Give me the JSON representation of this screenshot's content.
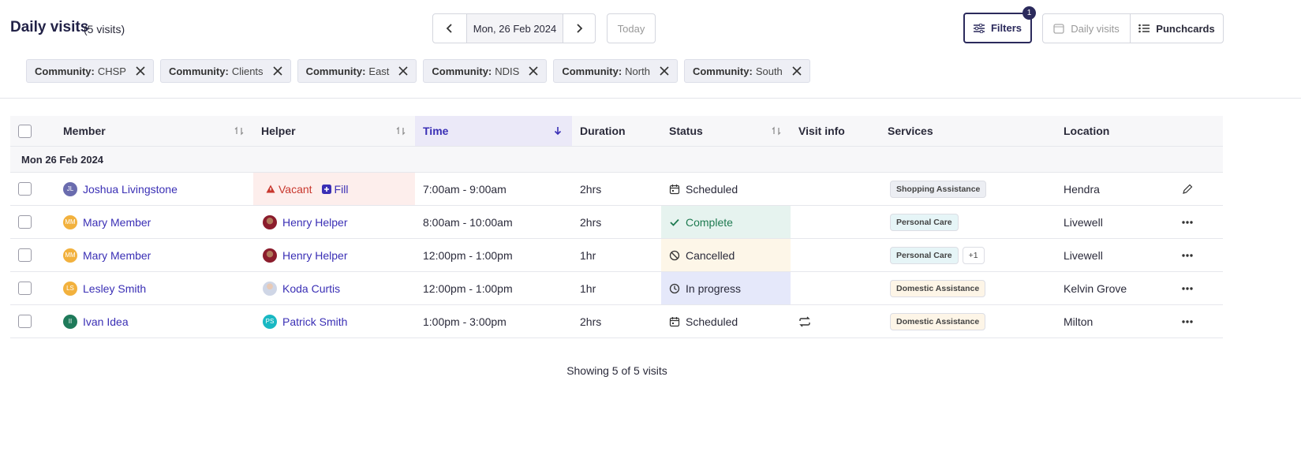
{
  "header": {
    "title": "Daily visits",
    "count": "(5 visits)",
    "date": "Mon, 26 Feb 2024",
    "today": "Today",
    "filters": "Filters",
    "filter_count": "1",
    "views": [
      "Daily visits",
      "Punchcards"
    ]
  },
  "chips": [
    {
      "key": "Community:",
      "value": "CHSP"
    },
    {
      "key": "Community:",
      "value": "Clients"
    },
    {
      "key": "Community:",
      "value": "East"
    },
    {
      "key": "Community:",
      "value": "NDIS"
    },
    {
      "key": "Community:",
      "value": "North"
    },
    {
      "key": "Community:",
      "value": "South"
    }
  ],
  "table": {
    "columns": [
      "Member",
      "Helper",
      "Time",
      "Duration",
      "Status",
      "Visit info",
      "Services",
      "Location"
    ],
    "group": "Mon 26 Feb 2024",
    "rows": [
      {
        "member_initials": "JL",
        "member": "Joshua Livingstone",
        "member_color": "#6a6cae",
        "helper": "Vacant",
        "helper_action": "Fill",
        "time": "7:00am - 9:00am",
        "duration": "2hrs",
        "status": "Scheduled",
        "services": [
          {
            "name": "Shopping Assistance",
            "color": "#eceef3"
          }
        ],
        "location": "Hendra"
      },
      {
        "member_initials": "MM",
        "member": "Mary Member",
        "member_color": "#f2b13d",
        "helper": "Henry Helper",
        "time": "8:00am - 10:00am",
        "duration": "2hrs",
        "status": "Complete",
        "status_color": "#e6f3ef",
        "services": [
          {
            "name": "Personal Care",
            "color": "#e6f5f7"
          }
        ],
        "location": "Livewell"
      },
      {
        "member_initials": "MM",
        "member": "Mary Member",
        "member_color": "#f2b13d",
        "helper": "Henry Helper",
        "time": "12:00pm - 1:00pm",
        "duration": "1hr",
        "status": "Cancelled",
        "status_color": "#fdf6e8",
        "services": [
          {
            "name": "Personal Care",
            "color": "#e6f5f7"
          }
        ],
        "more": "+1",
        "location": "Livewell"
      },
      {
        "member_initials": "LS",
        "member": "Lesley Smith",
        "member_color": "#f2b13d",
        "helper": "Koda Curtis",
        "time": "12:00pm - 1:00pm",
        "duration": "1hr",
        "status": "In progress",
        "status_color": "#e5e8fa",
        "services": [
          {
            "name": "Domestic Assistance",
            "color": "#fdf5e7"
          }
        ],
        "location": "Kelvin Grove"
      },
      {
        "member_initials": "II",
        "member": "Ivan Idea",
        "member_color": "#1f7a5a",
        "helper_initials": "PS",
        "helper": "Patrick Smith",
        "time": "1:00pm - 3:00pm",
        "duration": "2hrs",
        "status": "Scheduled",
        "services": [
          {
            "name": "Domestic Assistance",
            "color": "#fdf5e7"
          }
        ],
        "location": "Milton"
      }
    ]
  },
  "footer": "Showing 5 of 5 visits"
}
